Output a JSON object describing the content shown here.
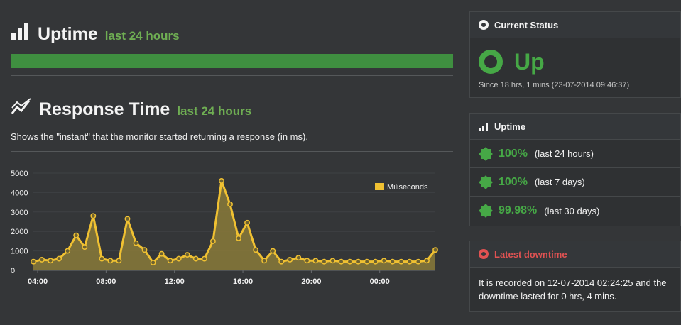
{
  "uptime": {
    "title": "Uptime",
    "subtitle": "last 24 hours",
    "icon": "bar-chart-icon",
    "bar_percent": 100,
    "bar_color": "#3f8f40"
  },
  "response_time": {
    "title": "Response Time",
    "subtitle": "last 24 hours",
    "icon": "line-chart-icon",
    "description": "Shows the \"instant\" that the monitor started returning a response (in ms)."
  },
  "chart_data": {
    "type": "area",
    "title": "",
    "xlabel": "",
    "ylabel": "",
    "ylim": [
      0,
      5000
    ],
    "yticks": [
      "5000",
      "4000",
      "3000",
      "2000",
      "1000",
      "0"
    ],
    "xtick_labels": [
      "04:00",
      "08:00",
      "12:00",
      "16:00",
      "20:00",
      "00:00"
    ],
    "xtick_hours": [
      4,
      8,
      12,
      16,
      20,
      24
    ],
    "xrange_hours": [
      3.75,
      27.25
    ],
    "grid": true,
    "legend": "top-right",
    "series": [
      {
        "name": "Miliseconds",
        "color": "#f0c132",
        "x": [
          3.75,
          4.25,
          4.75,
          5.25,
          5.75,
          6.25,
          6.75,
          7.25,
          7.75,
          8.25,
          8.75,
          9.25,
          9.75,
          10.25,
          10.75,
          11.25,
          11.75,
          12.25,
          12.75,
          13.25,
          13.75,
          14.25,
          14.75,
          15.25,
          15.75,
          16.25,
          16.75,
          17.25,
          17.75,
          18.25,
          18.75,
          19.25,
          19.75,
          20.25,
          20.75,
          21.25,
          21.75,
          22.25,
          22.75,
          23.25,
          23.75,
          24.25,
          24.75,
          25.25,
          25.75,
          26.25,
          26.75,
          27.25
        ],
        "y": [
          450,
          550,
          500,
          600,
          1000,
          1800,
          1200,
          2800,
          600,
          500,
          500,
          2650,
          1400,
          1050,
          400,
          850,
          500,
          600,
          800,
          600,
          600,
          1500,
          4600,
          3400,
          1650,
          2450,
          1050,
          500,
          1000,
          450,
          550,
          650,
          500,
          500,
          450,
          500,
          450,
          450,
          450,
          450,
          450,
          500,
          450,
          450,
          450,
          450,
          500,
          1050
        ]
      }
    ]
  },
  "current_status": {
    "title": "Current Status",
    "status": "Up",
    "status_color": "#46a846",
    "since": "Since 18 hrs, 1 mins (23-07-2014 09:46:37)"
  },
  "uptime_panel": {
    "title": "Uptime",
    "rows": [
      {
        "value": "100%",
        "label": "(last 24 hours)"
      },
      {
        "value": "100%",
        "label": "(last 7 days)"
      },
      {
        "value": "99.98%",
        "label": "(last 30 days)"
      }
    ]
  },
  "latest_downtime": {
    "title": "Latest downtime",
    "title_color": "#e05252",
    "text": "It is recorded on 12-07-2014 02:24:25 and the downtime lasted for 0 hrs, 4 mins."
  }
}
